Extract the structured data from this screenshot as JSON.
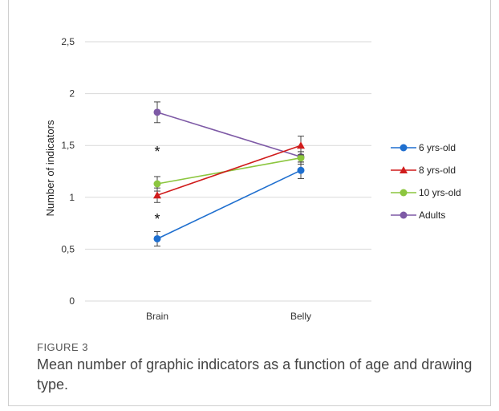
{
  "figure": {
    "label": "FIGURE 3",
    "caption": "Mean number of graphic indicators as a function of age and drawing type."
  },
  "chart_data": {
    "type": "line",
    "categories": [
      "Brain",
      "Belly"
    ],
    "ylabel": "Number of indicators",
    "xlabel": "",
    "ylim": [
      0,
      2.5
    ],
    "yticks": [
      "0",
      "0,5",
      "1",
      "1,5",
      "2",
      "2,5"
    ],
    "yticks_values": [
      0,
      0.5,
      1,
      1.5,
      2,
      2.5
    ],
    "grid": true,
    "legend_position": "right",
    "series": [
      {
        "name": "6 yrs-old",
        "color": "#1f6fcf",
        "marker": "circle",
        "values": [
          0.6,
          1.26
        ],
        "errors": [
          0.07,
          0.08
        ]
      },
      {
        "name": "8 yrs-old",
        "color": "#d01c1c",
        "marker": "triangle",
        "values": [
          1.02,
          1.5
        ],
        "errors": [
          0.07,
          0.09
        ]
      },
      {
        "name": "10 yrs-old",
        "color": "#8cc63f",
        "marker": "circle",
        "values": [
          1.13,
          1.38
        ],
        "errors": [
          0.07,
          0.06
        ]
      },
      {
        "name": "Adults",
        "color": "#7e5aa6",
        "marker": "circle",
        "values": [
          1.82,
          1.39
        ],
        "errors": [
          0.1,
          0.05
        ]
      }
    ],
    "annotations": [
      {
        "text": "*",
        "category": "Brain",
        "y": 1.47
      },
      {
        "text": "*",
        "category": "Brain",
        "y": 0.82
      }
    ]
  }
}
